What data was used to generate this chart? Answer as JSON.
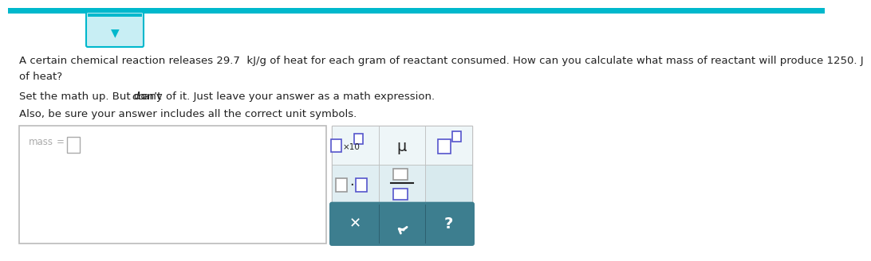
{
  "bg_color": "#ffffff",
  "top_bar_color": "#00b8cc",
  "text_color": "#222222",
  "gray_text": "#999999",
  "line1": "A certain chemical reaction releases 29.7  kJ/g of heat for each gram of reactant consumed. How can you calculate what mass of reactant will produce 1250. J",
  "line2": "of heat?",
  "line3a": "Set the math up. But don’t ",
  "line3b": "do",
  "line3c": " any of it. Just leave your answer as a math expression.",
  "line4": "Also, be sure your answer includes all the correct unit symbols.",
  "dark_btn_color": "#3d7e8f",
  "light_panel_color": "#e0eef2",
  "lighter_panel_color": "#eef6f8",
  "symbol_blue": "#5555cc",
  "symbol_gray": "#999999",
  "font_size": 9.5
}
